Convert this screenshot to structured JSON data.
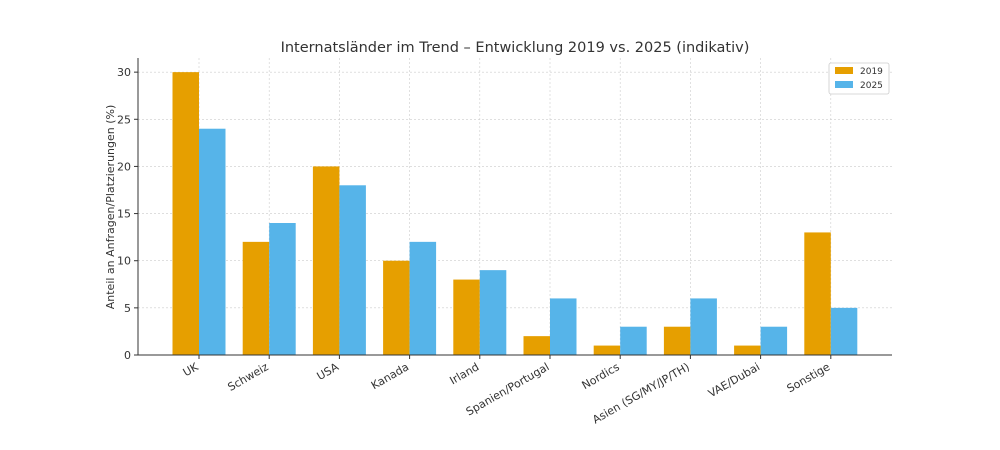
{
  "chart_data": {
    "type": "bar",
    "title": "Internatsländer im Trend – Entwicklung 2019 vs. 2025 (indikativ)",
    "xlabel": "",
    "ylabel": "Anteil an Anfragen/Platzierungen (%)",
    "categories": [
      "UK",
      "Schweiz",
      "USA",
      "Kanada",
      "Irland",
      "Spanien/Portugal",
      "Nordics",
      "Asien (SG/MY/JP/TH)",
      "VAE/Dubai",
      "Sonstige"
    ],
    "series": [
      {
        "name": "2019",
        "color": "#E69F00",
        "values": [
          30,
          12,
          20,
          10,
          8,
          2,
          1,
          3,
          1,
          13
        ]
      },
      {
        "name": "2025",
        "color": "#56B4E9",
        "values": [
          24,
          14,
          18,
          12,
          9,
          6,
          3,
          6,
          3,
          5
        ]
      }
    ],
    "ylim": [
      0,
      31.5
    ],
    "yticks": [
      0,
      5,
      10,
      15,
      20,
      25,
      30
    ],
    "grid": true,
    "legend_position": "top-right"
  }
}
